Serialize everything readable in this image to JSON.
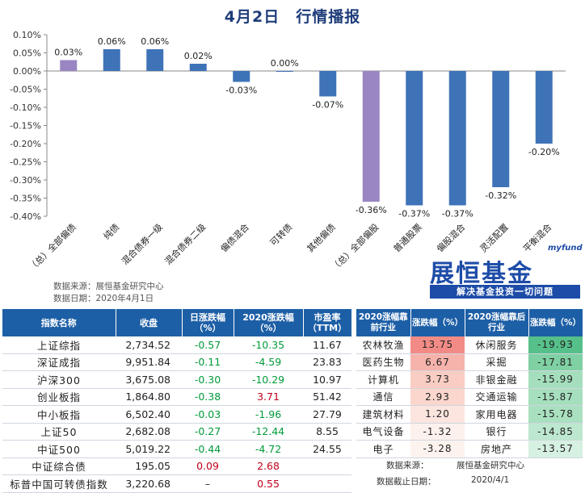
{
  "title": "4月2日　行情播报",
  "chart_data": {
    "type": "bar",
    "categories": [
      "（总）全部偏债",
      "纯债",
      "混合债券一级",
      "混合债券二级",
      "偏债混合",
      "可转债",
      "其他偏债",
      "（总）全部偏股",
      "普通股票",
      "偏股混合",
      "灵活配置",
      "平衡混合"
    ],
    "values": [
      0.03,
      0.06,
      0.06,
      0.02,
      -0.03,
      0.0,
      -0.07,
      -0.36,
      -0.37,
      -0.37,
      -0.32,
      -0.2
    ],
    "value_labels": [
      "0.03%",
      "0.06%",
      "0.06%",
      "0.02%",
      "-0.03%",
      "0.00%",
      "-0.07%",
      "-0.36%",
      "-0.37%",
      "-0.37%",
      "-0.32%",
      "-0.20%"
    ],
    "highlight": [
      true,
      false,
      false,
      false,
      false,
      false,
      false,
      true,
      false,
      false,
      false,
      false
    ],
    "ylim": [
      -0.4,
      0.1
    ],
    "yticks": [
      "0.10%",
      "0.05%",
      "0.00%",
      "-0.05%",
      "-0.10%",
      "-0.15%",
      "-0.20%",
      "-0.25%",
      "-0.30%",
      "-0.35%",
      "-0.40%"
    ],
    "ytick_values": [
      0.1,
      0.05,
      0.0,
      -0.05,
      -0.1,
      -0.15,
      -0.2,
      -0.25,
      -0.3,
      -0.35,
      -0.4
    ],
    "colors": {
      "bar": "#3e73b8",
      "highlight": "#9a86c2",
      "axis": "#888888"
    }
  },
  "chart_source": {
    "line1": "数据来源：展恒基金研究中心",
    "line2": "数据日期：2020年4月1日"
  },
  "logo": {
    "small": "myfund",
    "big": "展恒基金",
    "band": "解决基金投资一切问题"
  },
  "index_table": {
    "headers": [
      "指数名称",
      "收盘",
      "日涨跌幅（%）",
      "2020涨跌幅（%）",
      "市盈率（TTM）"
    ],
    "rows": [
      {
        "name": "上证综指",
        "close": "2,734.52",
        "day": "-0.57",
        "ytd": "-10.35",
        "pe": "11.67",
        "day_sign": "neg",
        "ytd_sign": "neg"
      },
      {
        "name": "深证成指",
        "close": "9,951.84",
        "day": "-0.11",
        "ytd": "-4.59",
        "pe": "23.83",
        "day_sign": "neg",
        "ytd_sign": "neg"
      },
      {
        "name": "沪深300",
        "close": "3,675.08",
        "day": "-0.30",
        "ytd": "-10.29",
        "pe": "10.97",
        "day_sign": "neg",
        "ytd_sign": "neg"
      },
      {
        "name": "创业板指",
        "close": "1,864.80",
        "day": "-0.38",
        "ytd": "3.71",
        "pe": "51.42",
        "day_sign": "neg",
        "ytd_sign": "pos"
      },
      {
        "name": "中小板指",
        "close": "6,502.40",
        "day": "-0.03",
        "ytd": "-1.96",
        "pe": "27.79",
        "day_sign": "neg",
        "ytd_sign": "neg"
      },
      {
        "name": "上证50",
        "close": "2,682.08",
        "day": "-0.27",
        "ytd": "-12.44",
        "pe": "8.55",
        "day_sign": "neg",
        "ytd_sign": "neg"
      },
      {
        "name": "中证500",
        "close": "5,019.22",
        "day": "-0.44",
        "ytd": "-4.72",
        "pe": "24.55",
        "day_sign": "neg",
        "ytd_sign": "neg"
      },
      {
        "name": "中证综合债",
        "close": "195.05",
        "day": "0.09",
        "ytd": "2.68",
        "pe": "",
        "day_sign": "pos",
        "ytd_sign": "pos"
      },
      {
        "name": "标普中国可转债指数",
        "close": "3,220.68",
        "day": "–",
        "ytd": "0.55",
        "pe": "",
        "day_sign": "neu",
        "ytd_sign": "pos"
      }
    ]
  },
  "industry_table": {
    "headers": [
      "2020涨幅靠前行业",
      "涨跌幅（%）",
      "2020涨幅靠后行业",
      "涨跌幅（%）"
    ],
    "rows": [
      {
        "top": "农林牧渔",
        "top_val": "13.75",
        "top_bg": "#f28b86",
        "bot": "休闲服务",
        "bot_val": "-19.93",
        "bot_bg": "#56c08a"
      },
      {
        "top": "医药生物",
        "top_val": "6.67",
        "top_bg": "#f6b3ab",
        "bot": "采掘",
        "bot_val": "-17.81",
        "bot_bg": "#7fd0a3"
      },
      {
        "top": "计算机",
        "top_val": "3.73",
        "top_bg": "#f9cdc3",
        "bot": "非银金融",
        "bot_val": "-15.99",
        "bot_bg": "#a4debc"
      },
      {
        "top": "通信",
        "top_val": "2.93",
        "top_bg": "#fad6cd",
        "bot": "交通运输",
        "bot_val": "-15.87",
        "bot_bg": "#a6dfbe"
      },
      {
        "top": "建筑材料",
        "top_val": "1.20",
        "top_bg": "#fbe5de",
        "bot": "家用电器",
        "bot_val": "-15.78",
        "bot_bg": "#a9e0c0"
      },
      {
        "top": "电气设备",
        "top_val": "-1.32",
        "top_bg": "#fcf1ec",
        "bot": "银行",
        "bot_val": "-14.85",
        "bot_bg": "#bde7cf"
      },
      {
        "top": "电子",
        "top_val": "-3.28",
        "top_bg": "#fdf3ee",
        "bot": "房地产",
        "bot_val": "-13.57",
        "bot_bg": "#d6f0e1"
      }
    ],
    "source_label": "数据来源：",
    "source_value": "展恒基金研究中心",
    "date_label": "数据截止日期：",
    "date_value": "2020/4/1"
  }
}
